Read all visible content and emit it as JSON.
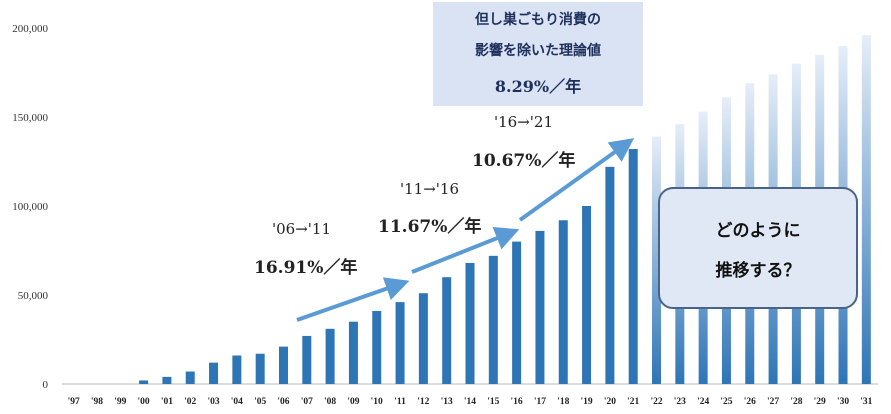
{
  "chart_data": {
    "type": "bar",
    "categories": [
      "'97",
      "'98",
      "'99",
      "'00",
      "'01",
      "'02",
      "'03",
      "'04",
      "'05",
      "'06",
      "'07",
      "'08",
      "'09",
      "'10",
      "'11",
      "'12",
      "'13",
      "'14",
      "'15",
      "'16",
      "'17",
      "'18",
      "'19",
      "'20",
      "'21",
      "'22",
      "'23",
      "'24",
      "'25",
      "'26",
      "'27",
      "'28",
      "'29",
      "'30",
      "'31"
    ],
    "values": [
      0,
      0,
      0,
      2000,
      4000,
      7000,
      12000,
      16000,
      17000,
      21000,
      27000,
      31000,
      35000,
      41000,
      46000,
      51000,
      60000,
      68000,
      72000,
      80000,
      86000,
      92000,
      100000,
      122000,
      132000,
      139000,
      146000,
      153000,
      161000,
      169000,
      174000,
      180000,
      185000,
      190000,
      196000
    ],
    "projected_from_index": 25,
    "ylim": [
      0,
      200000
    ],
    "yticks": [
      "0",
      "50,000",
      "100,000",
      "150,000",
      "200,000"
    ],
    "ytick_values": [
      0,
      50000,
      100000,
      150000,
      200000
    ],
    "colors": {
      "bar": "#2e75b6",
      "projected_top": "#e6eef8",
      "arrow": "#5b9bd5"
    },
    "annotations": [
      {
        "period": "'06→'11",
        "rate": "16.91%／年"
      },
      {
        "period": "'11→'16",
        "rate": "11.67%／年"
      },
      {
        "period": "'16→'21",
        "rate": "10.67%／年"
      }
    ],
    "top_box": {
      "line1": "但し巣ごもり消費の",
      "line2": "影響を除いた理論値",
      "rate": "8.29%／年"
    },
    "question_box": {
      "line1": "どのように",
      "line2": "推移する？"
    }
  }
}
